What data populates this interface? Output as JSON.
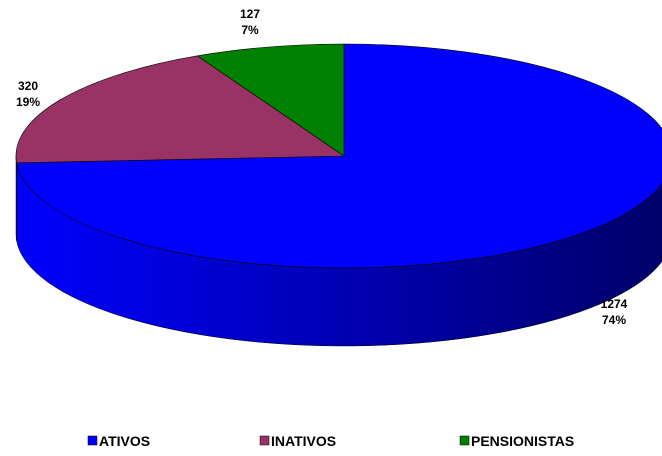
{
  "chart_data": {
    "type": "pie",
    "categories": [
      "ATIVOS",
      "INATIVOS",
      "PENSIONISTAS"
    ],
    "values": [
      1274,
      320,
      127
    ],
    "percent_labels": [
      "74%",
      "19%",
      "7%"
    ],
    "colors": [
      "#0000ff",
      "#993366",
      "#008000"
    ],
    "legend": "bottom"
  }
}
